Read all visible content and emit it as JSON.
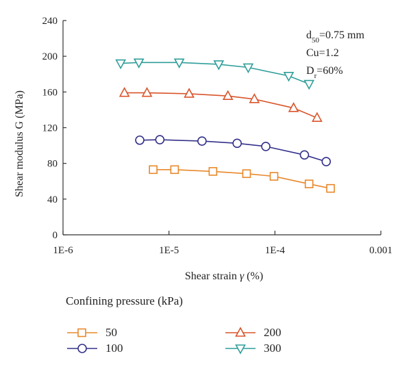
{
  "chart_data": {
    "type": "line",
    "xscale": "log",
    "xlim": [
      1e-06,
      0.001
    ],
    "ylim": [
      0,
      240
    ],
    "xticks": [
      "1E-6",
      "1E-5",
      "1E-4",
      "0.001"
    ],
    "yticks": [
      "0",
      "40",
      "80",
      "120",
      "160",
      "200",
      "240"
    ],
    "xlabel_pre": "Shear strain ",
    "xlabel_sym": "γ",
    "xlabel_post": " (%)",
    "ylabel": "Shear modulus G (MPa)",
    "grid": false,
    "annotations": {
      "d50_main": "d",
      "d50_sub": "50",
      "d50_rest": "=0.75 mm",
      "cu": "Cu=1.2",
      "dr_main": "D",
      "dr_sub": "r",
      "dr_rest": "=60%"
    },
    "legend_title": "Confining pressure (kPa)",
    "series": [
      {
        "name": "50",
        "color": "#e8882a",
        "marker": "square",
        "x": [
          7.1e-06,
          1.13e-05,
          2.6e-05,
          5.4e-05,
          9.8e-05,
          0.00021,
          0.000335
        ],
        "y": [
          73,
          73,
          71,
          68.5,
          65.5,
          57,
          52
        ]
      },
      {
        "name": "100",
        "color": "#33308a",
        "marker": "circle",
        "x": [
          5.3e-06,
          8.2e-06,
          2.05e-05,
          4.4e-05,
          8.2e-05,
          0.00019,
          0.000305
        ],
        "y": [
          106,
          106.5,
          105,
          102.5,
          99,
          89.5,
          82
        ]
      },
      {
        "name": "200",
        "color": "#d9542a",
        "marker": "triangle-up",
        "x": [
          3.8e-06,
          6.2e-06,
          1.55e-05,
          3.6e-05,
          6.4e-05,
          0.00015,
          0.00025
        ],
        "y": [
          159,
          159,
          158,
          155.5,
          152,
          142,
          131
        ]
      },
      {
        "name": "300",
        "color": "#2f9e9a",
        "marker": "triangle-down",
        "x": [
          3.5e-06,
          5.2e-06,
          1.25e-05,
          2.95e-05,
          5.6e-05,
          0.000135,
          0.00021
        ],
        "y": [
          192,
          193,
          193,
          191,
          187.5,
          178,
          169
        ]
      }
    ]
  }
}
